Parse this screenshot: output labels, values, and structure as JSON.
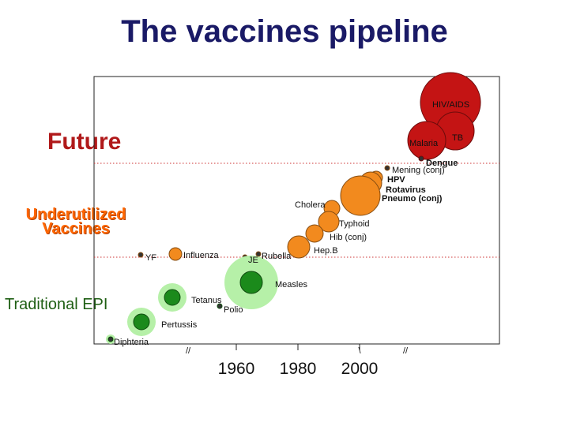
{
  "title": "The vaccines pipeline",
  "categories": {
    "future": "Future",
    "underutilized": "Underutilized Vaccines",
    "traditional": "Traditional EPI"
  },
  "colors": {
    "future": "#c41414",
    "underutilized": "#f28a1e",
    "traditional": "#1b8a1b",
    "traditional_halo": "#b6f0a8",
    "separator": "#cc3333"
  },
  "chart_data": {
    "type": "scatter",
    "title": "",
    "xlabel": "",
    "ylabel": "",
    "x_ticks": [
      {
        "value": 1960,
        "label": "1960"
      },
      {
        "value": 1980,
        "label": "1980"
      },
      {
        "value": 2000,
        "label": "2000"
      }
    ],
    "axis_breaks": [
      "//",
      "//",
      "\\"
    ],
    "series": [
      {
        "category": "future",
        "points": [
          {
            "label": "HIV/AIDS",
            "bubble": "large"
          },
          {
            "label": "TB",
            "bubble": "medium"
          },
          {
            "label": "Malaria",
            "bubble": "medium"
          },
          {
            "label": "Dengue",
            "bubble": "dot"
          }
        ]
      },
      {
        "category": "underutilized",
        "points": [
          {
            "label": "Mening (conj)",
            "bubble": "dot"
          },
          {
            "label": "HPV",
            "bubble": "small"
          },
          {
            "label": "Rotavirus",
            "bubble": "medium"
          },
          {
            "label": "Pneumo (conj)",
            "bubble": "large"
          },
          {
            "label": "Cholera",
            "bubble": "small"
          },
          {
            "label": "Typhoid",
            "bubble": "small"
          },
          {
            "label": "Hib (conj)",
            "bubble": "medium"
          },
          {
            "label": "Hep.B",
            "bubble": "medium"
          },
          {
            "label": "Rubella",
            "bubble": "dot"
          },
          {
            "label": "JE",
            "bubble": "dot"
          },
          {
            "label": "Influenza",
            "bubble": "small"
          },
          {
            "label": "YF",
            "bubble": "dot"
          }
        ]
      },
      {
        "category": "traditional",
        "points": [
          {
            "label": "Measles",
            "bubble": "large"
          },
          {
            "label": "Tetanus",
            "bubble": "medium"
          },
          {
            "label": "Polio",
            "bubble": "dot"
          },
          {
            "label": "Pertussis",
            "bubble": "medium"
          },
          {
            "label": "Diphteria",
            "bubble": "dot"
          }
        ]
      }
    ]
  }
}
